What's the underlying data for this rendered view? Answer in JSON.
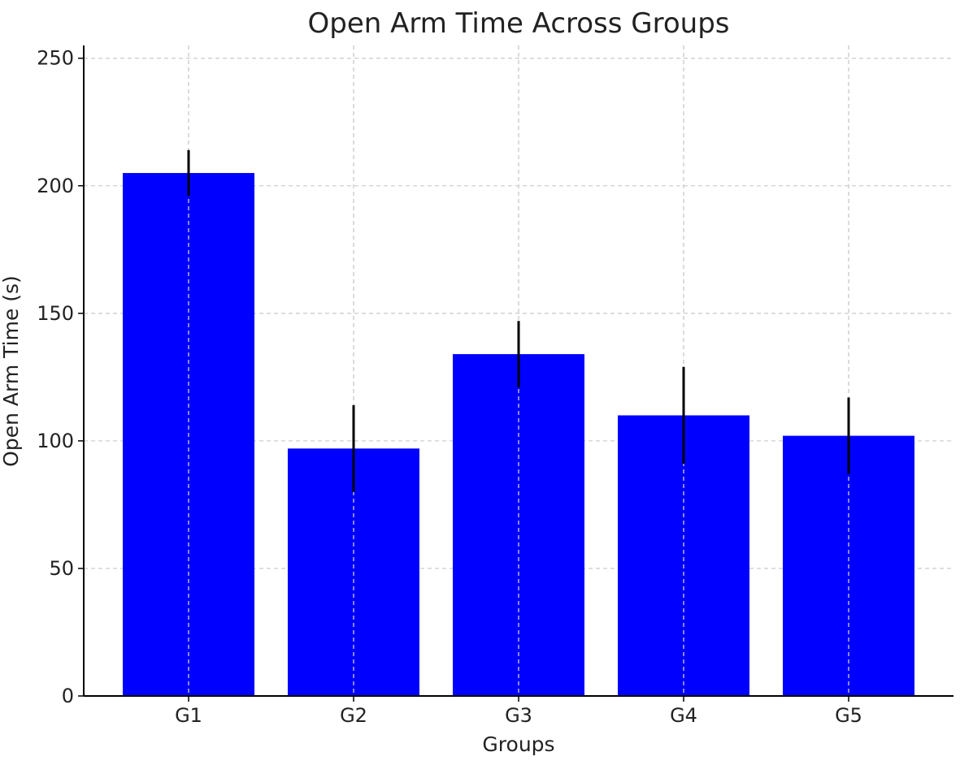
{
  "chart_data": {
    "type": "bar",
    "title": "Open Arm Time Across Groups",
    "xlabel": "Groups",
    "ylabel": "Open Arm Time (s)",
    "categories": [
      "G1",
      "G2",
      "G3",
      "G4",
      "G5"
    ],
    "values": [
      205,
      97,
      134,
      110,
      102
    ],
    "errors": [
      9,
      17,
      13,
      19,
      15
    ],
    "ylim": [
      0,
      255
    ],
    "yticks": [
      0,
      50,
      100,
      150,
      200,
      250
    ],
    "ytick_labels": [
      "0",
      "50",
      "100",
      "150",
      "200",
      "250"
    ],
    "grid": true,
    "bar_color": "#0000ff",
    "error_color": "#000000"
  }
}
